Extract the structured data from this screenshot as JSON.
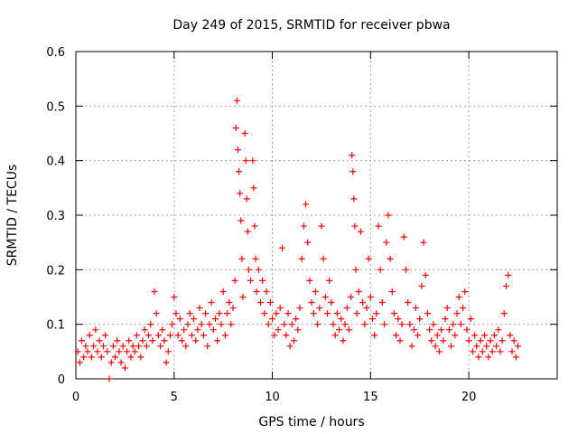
{
  "chart_data": {
    "type": "scatter",
    "title": "Day 249 of 2015, SRMTID for receiver pbwa",
    "xlabel": "GPS time / hours",
    "ylabel": "SRMTID / TECUs",
    "xlim": [
      0,
      24.5
    ],
    "ylim": [
      0,
      0.6
    ],
    "xticks": [
      0,
      5,
      10,
      15,
      20
    ],
    "yticks": [
      0,
      0.1,
      0.2,
      0.3,
      0.4,
      0.5,
      0.6
    ],
    "xtick_labels": [
      "0",
      "5",
      "10",
      "15",
      "20"
    ],
    "ytick_labels": [
      "0",
      "0.1",
      "0.2",
      "0.3",
      "0.4",
      "0.5",
      "0.6"
    ],
    "grid": true,
    "marker": "+",
    "color": "#ff0000",
    "series": [
      {
        "name": "SRMTID",
        "points": [
          [
            0.1,
            0.05
          ],
          [
            0.2,
            0.03
          ],
          [
            0.3,
            0.07
          ],
          [
            0.4,
            0.04
          ],
          [
            0.5,
            0.06
          ],
          [
            0.6,
            0.05
          ],
          [
            0.7,
            0.08
          ],
          [
            0.8,
            0.04
          ],
          [
            0.9,
            0.06
          ],
          [
            1.0,
            0.09
          ],
          [
            1.1,
            0.05
          ],
          [
            1.2,
            0.07
          ],
          [
            1.3,
            0.04
          ],
          [
            1.4,
            0.06
          ],
          [
            1.5,
            0.08
          ],
          [
            1.6,
            0.05
          ],
          [
            1.7,
            0.0
          ],
          [
            1.8,
            0.03
          ],
          [
            1.9,
            0.06
          ],
          [
            2.0,
            0.04
          ],
          [
            2.1,
            0.07
          ],
          [
            2.2,
            0.05
          ],
          [
            2.3,
            0.03
          ],
          [
            2.4,
            0.06
          ],
          [
            2.5,
            0.02
          ],
          [
            2.6,
            0.05
          ],
          [
            2.7,
            0.07
          ],
          [
            2.8,
            0.04
          ],
          [
            2.9,
            0.06
          ],
          [
            3.0,
            0.05
          ],
          [
            3.1,
            0.08
          ],
          [
            3.2,
            0.06
          ],
          [
            3.3,
            0.04
          ],
          [
            3.4,
            0.07
          ],
          [
            3.5,
            0.09
          ],
          [
            3.6,
            0.06
          ],
          [
            3.7,
            0.08
          ],
          [
            3.8,
            0.1
          ],
          [
            3.9,
            0.07
          ],
          [
            4.0,
            0.16
          ],
          [
            4.1,
            0.12
          ],
          [
            4.2,
            0.08
          ],
          [
            4.3,
            0.06
          ],
          [
            4.4,
            0.09
          ],
          [
            4.5,
            0.07
          ],
          [
            4.6,
            0.03
          ],
          [
            4.7,
            0.05
          ],
          [
            4.8,
            0.08
          ],
          [
            4.9,
            0.1
          ],
          [
            5.0,
            0.15
          ],
          [
            5.1,
            0.12
          ],
          [
            5.2,
            0.08
          ],
          [
            5.3,
            0.11
          ],
          [
            5.4,
            0.07
          ],
          [
            5.5,
            0.09
          ],
          [
            5.6,
            0.06
          ],
          [
            5.7,
            0.1
          ],
          [
            5.8,
            0.12
          ],
          [
            5.9,
            0.08
          ],
          [
            6.0,
            0.11
          ],
          [
            6.1,
            0.07
          ],
          [
            6.2,
            0.09
          ],
          [
            6.3,
            0.13
          ],
          [
            6.4,
            0.1
          ],
          [
            6.5,
            0.08
          ],
          [
            6.6,
            0.12
          ],
          [
            6.7,
            0.06
          ],
          [
            6.8,
            0.1
          ],
          [
            6.9,
            0.14
          ],
          [
            7.0,
            0.09
          ],
          [
            7.1,
            0.11
          ],
          [
            7.2,
            0.07
          ],
          [
            7.3,
            0.12
          ],
          [
            7.4,
            0.1
          ],
          [
            7.5,
            0.16
          ],
          [
            7.6,
            0.08
          ],
          [
            7.7,
            0.12
          ],
          [
            7.8,
            0.14
          ],
          [
            7.9,
            0.1
          ],
          [
            8.0,
            0.13
          ],
          [
            8.1,
            0.18
          ],
          [
            8.15,
            0.46
          ],
          [
            8.2,
            0.51
          ],
          [
            8.25,
            0.42
          ],
          [
            8.3,
            0.38
          ],
          [
            8.35,
            0.34
          ],
          [
            8.4,
            0.29
          ],
          [
            8.45,
            0.22
          ],
          [
            8.5,
            0.15
          ],
          [
            8.6,
            0.45
          ],
          [
            8.65,
            0.4
          ],
          [
            8.7,
            0.33
          ],
          [
            8.75,
            0.27
          ],
          [
            8.8,
            0.2
          ],
          [
            8.9,
            0.18
          ],
          [
            9.0,
            0.4
          ],
          [
            9.05,
            0.35
          ],
          [
            9.1,
            0.28
          ],
          [
            9.15,
            0.22
          ],
          [
            9.2,
            0.16
          ],
          [
            9.3,
            0.2
          ],
          [
            9.4,
            0.14
          ],
          [
            9.5,
            0.18
          ],
          [
            9.6,
            0.12
          ],
          [
            9.7,
            0.16
          ],
          [
            9.8,
            0.1
          ],
          [
            9.9,
            0.14
          ],
          [
            10.0,
            0.11
          ],
          [
            10.1,
            0.08
          ],
          [
            10.2,
            0.12
          ],
          [
            10.3,
            0.09
          ],
          [
            10.4,
            0.13
          ],
          [
            10.5,
            0.24
          ],
          [
            10.6,
            0.1
          ],
          [
            10.7,
            0.08
          ],
          [
            10.8,
            0.12
          ],
          [
            10.9,
            0.06
          ],
          [
            11.0,
            0.1
          ],
          [
            11.1,
            0.07
          ],
          [
            11.2,
            0.11
          ],
          [
            11.3,
            0.09
          ],
          [
            11.4,
            0.13
          ],
          [
            11.5,
            0.22
          ],
          [
            11.6,
            0.28
          ],
          [
            11.7,
            0.32
          ],
          [
            11.8,
            0.25
          ],
          [
            11.9,
            0.18
          ],
          [
            12.0,
            0.14
          ],
          [
            12.1,
            0.12
          ],
          [
            12.2,
            0.16
          ],
          [
            12.3,
            0.1
          ],
          [
            12.4,
            0.13
          ],
          [
            12.5,
            0.28
          ],
          [
            12.6,
            0.22
          ],
          [
            12.7,
            0.15
          ],
          [
            12.8,
            0.12
          ],
          [
            12.9,
            0.18
          ],
          [
            13.0,
            0.14
          ],
          [
            13.1,
            0.1
          ],
          [
            13.2,
            0.08
          ],
          [
            13.3,
            0.12
          ],
          [
            13.4,
            0.09
          ],
          [
            13.5,
            0.11
          ],
          [
            13.6,
            0.07
          ],
          [
            13.7,
            0.1
          ],
          [
            13.8,
            0.13
          ],
          [
            13.9,
            0.09
          ],
          [
            14.0,
            0.15
          ],
          [
            14.05,
            0.41
          ],
          [
            14.1,
            0.38
          ],
          [
            14.15,
            0.33
          ],
          [
            14.2,
            0.28
          ],
          [
            14.25,
            0.2
          ],
          [
            14.3,
            0.12
          ],
          [
            14.4,
            0.16
          ],
          [
            14.5,
            0.27
          ],
          [
            14.6,
            0.14
          ],
          [
            14.7,
            0.1
          ],
          [
            14.8,
            0.13
          ],
          [
            14.9,
            0.22
          ],
          [
            15.0,
            0.15
          ],
          [
            15.1,
            0.11
          ],
          [
            15.2,
            0.08
          ],
          [
            15.3,
            0.12
          ],
          [
            15.4,
            0.28
          ],
          [
            15.5,
            0.2
          ],
          [
            15.6,
            0.14
          ],
          [
            15.7,
            0.1
          ],
          [
            15.8,
            0.25
          ],
          [
            15.9,
            0.3
          ],
          [
            16.0,
            0.22
          ],
          [
            16.1,
            0.16
          ],
          [
            16.2,
            0.12
          ],
          [
            16.3,
            0.08
          ],
          [
            16.4,
            0.11
          ],
          [
            16.5,
            0.07
          ],
          [
            16.6,
            0.1
          ],
          [
            16.7,
            0.26
          ],
          [
            16.8,
            0.2
          ],
          [
            16.9,
            0.14
          ],
          [
            17.0,
            0.1
          ],
          [
            17.1,
            0.06
          ],
          [
            17.2,
            0.09
          ],
          [
            17.3,
            0.13
          ],
          [
            17.4,
            0.08
          ],
          [
            17.5,
            0.11
          ],
          [
            17.6,
            0.17
          ],
          [
            17.7,
            0.25
          ],
          [
            17.8,
            0.19
          ],
          [
            17.9,
            0.12
          ],
          [
            18.0,
            0.09
          ],
          [
            18.1,
            0.07
          ],
          [
            18.2,
            0.1
          ],
          [
            18.3,
            0.06
          ],
          [
            18.4,
            0.08
          ],
          [
            18.5,
            0.05
          ],
          [
            18.6,
            0.09
          ],
          [
            18.7,
            0.07
          ],
          [
            18.8,
            0.11
          ],
          [
            18.9,
            0.13
          ],
          [
            19.0,
            0.09
          ],
          [
            19.1,
            0.06
          ],
          [
            19.2,
            0.1
          ],
          [
            19.3,
            0.08
          ],
          [
            19.4,
            0.12
          ],
          [
            19.5,
            0.15
          ],
          [
            19.6,
            0.1
          ],
          [
            19.7,
            0.13
          ],
          [
            19.8,
            0.16
          ],
          [
            19.9,
            0.09
          ],
          [
            20.0,
            0.07
          ],
          [
            20.1,
            0.11
          ],
          [
            20.2,
            0.05
          ],
          [
            20.3,
            0.08
          ],
          [
            20.4,
            0.06
          ],
          [
            20.5,
            0.04
          ],
          [
            20.6,
            0.07
          ],
          [
            20.7,
            0.05
          ],
          [
            20.8,
            0.08
          ],
          [
            20.9,
            0.06
          ],
          [
            21.0,
            0.04
          ],
          [
            21.1,
            0.07
          ],
          [
            21.2,
            0.05
          ],
          [
            21.3,
            0.08
          ],
          [
            21.4,
            0.06
          ],
          [
            21.5,
            0.09
          ],
          [
            21.6,
            0.05
          ],
          [
            21.7,
            0.07
          ],
          [
            21.8,
            0.12
          ],
          [
            21.9,
            0.17
          ],
          [
            22.0,
            0.19
          ],
          [
            22.1,
            0.08
          ],
          [
            22.2,
            0.05
          ],
          [
            22.3,
            0.07
          ],
          [
            22.4,
            0.04
          ],
          [
            22.5,
            0.06
          ]
        ]
      }
    ]
  }
}
